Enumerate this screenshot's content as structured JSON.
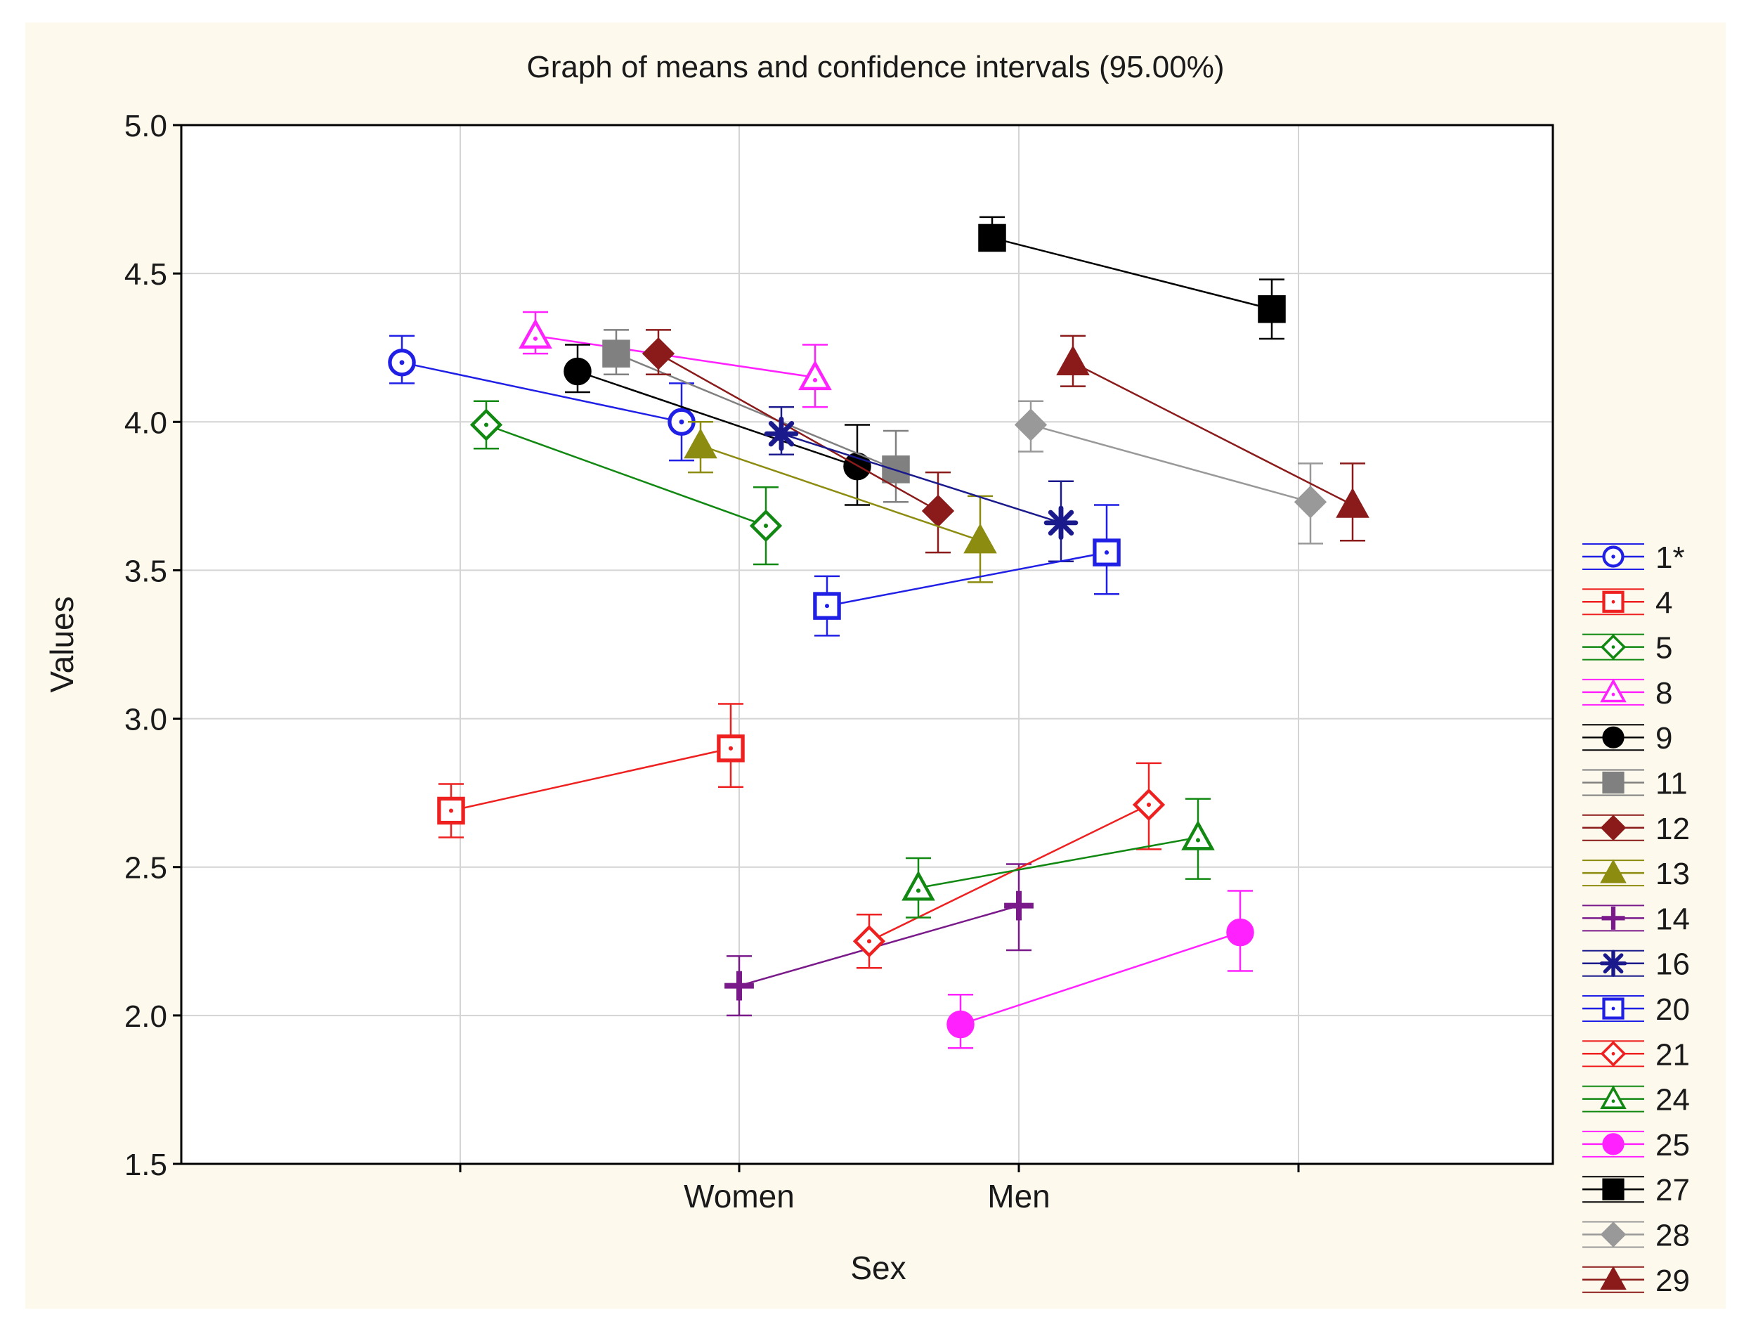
{
  "chart_data": {
    "type": "line",
    "title": "Graph of means and confidence intervals (95.00%)",
    "xlabel": "Sex",
    "ylabel": "Values",
    "categories": [
      "Women",
      "Men"
    ],
    "ylim": [
      1.5,
      5.0
    ],
    "yticks": [
      "1.5",
      "2.0",
      "2.5",
      "3.0",
      "3.5",
      "4.0",
      "4.5",
      "5.0"
    ],
    "grid": true,
    "legend_position": "right",
    "colors": {
      "background": "#fdf9ec",
      "plot_background": "#ffffff",
      "grid": "#d4d4d4",
      "axis": "#000000"
    },
    "series": [
      {
        "name": "1*",
        "color": "#1f1fe6",
        "marker": "circle-open",
        "women": {
          "mean": 4.2,
          "lo": 4.13,
          "hi": 4.29
        },
        "men": {
          "mean": 4.0,
          "lo": 3.87,
          "hi": 4.13
        }
      },
      {
        "name": "4",
        "color": "#ee2020",
        "marker": "square-open",
        "women": {
          "mean": 2.69,
          "lo": 2.6,
          "hi": 2.78
        },
        "men": {
          "mean": 2.9,
          "lo": 2.77,
          "hi": 3.05
        }
      },
      {
        "name": "5",
        "color": "#118811",
        "marker": "diamond-open",
        "women": {
          "mean": 3.99,
          "lo": 3.91,
          "hi": 4.07
        },
        "men": {
          "mean": 3.65,
          "lo": 3.52,
          "hi": 3.78
        }
      },
      {
        "name": "8",
        "color": "#ff22ff",
        "marker": "triangle-open",
        "women": {
          "mean": 4.29,
          "lo": 4.23,
          "hi": 4.37
        },
        "men": {
          "mean": 4.15,
          "lo": 4.05,
          "hi": 4.26
        }
      },
      {
        "name": "9",
        "color": "#000000",
        "marker": "circle-filled",
        "women": {
          "mean": 4.17,
          "lo": 4.1,
          "hi": 4.26
        },
        "men": {
          "mean": 3.85,
          "lo": 3.72,
          "hi": 3.99
        }
      },
      {
        "name": "11",
        "color": "#808080",
        "marker": "square-filled",
        "women": {
          "mean": 4.23,
          "lo": 4.16,
          "hi": 4.31
        },
        "men": {
          "mean": 3.84,
          "lo": 3.73,
          "hi": 3.97
        }
      },
      {
        "name": "12",
        "color": "#8b1a1a",
        "marker": "diamond-filled",
        "women": {
          "mean": 4.23,
          "lo": 4.16,
          "hi": 4.31
        },
        "men": {
          "mean": 3.7,
          "lo": 3.56,
          "hi": 3.83
        }
      },
      {
        "name": "13",
        "color": "#8c8c10",
        "marker": "triangle-filled",
        "women": {
          "mean": 3.92,
          "lo": 3.83,
          "hi": 4.0
        },
        "men": {
          "mean": 3.6,
          "lo": 3.46,
          "hi": 3.75
        }
      },
      {
        "name": "14",
        "color": "#7a1a8a",
        "marker": "plus",
        "women": {
          "mean": 2.1,
          "lo": 2.0,
          "hi": 2.2
        },
        "men": {
          "mean": 2.37,
          "lo": 2.22,
          "hi": 2.51
        }
      },
      {
        "name": "16",
        "color": "#1a1a8c",
        "marker": "asterisk",
        "women": {
          "mean": 3.96,
          "lo": 3.89,
          "hi": 4.05
        },
        "men": {
          "mean": 3.66,
          "lo": 3.53,
          "hi": 3.8
        }
      },
      {
        "name": "20",
        "color": "#1f1fe6",
        "marker": "square-open",
        "women": {
          "mean": 3.38,
          "lo": 3.28,
          "hi": 3.48
        },
        "men": {
          "mean": 3.56,
          "lo": 3.42,
          "hi": 3.72
        }
      },
      {
        "name": "21",
        "color": "#ee2020",
        "marker": "diamond-open",
        "women": {
          "mean": 2.25,
          "lo": 2.16,
          "hi": 2.34
        },
        "men": {
          "mean": 2.71,
          "lo": 2.56,
          "hi": 2.85
        }
      },
      {
        "name": "24",
        "color": "#118811",
        "marker": "triangle-open",
        "women": {
          "mean": 2.43,
          "lo": 2.33,
          "hi": 2.53
        },
        "men": {
          "mean": 2.6,
          "lo": 2.46,
          "hi": 2.73
        }
      },
      {
        "name": "25",
        "color": "#ff22ff",
        "marker": "circle-filled",
        "women": {
          "mean": 1.97,
          "lo": 1.89,
          "hi": 2.07
        },
        "men": {
          "mean": 2.28,
          "lo": 2.15,
          "hi": 2.42
        }
      },
      {
        "name": "27",
        "color": "#000000",
        "marker": "square-filled",
        "women": {
          "mean": 4.62,
          "lo": 4.58,
          "hi": 4.69
        },
        "men": {
          "mean": 4.38,
          "lo": 4.28,
          "hi": 4.48
        }
      },
      {
        "name": "28",
        "color": "#999999",
        "marker": "diamond-filled",
        "women": {
          "mean": 3.99,
          "lo": 3.9,
          "hi": 4.07
        },
        "men": {
          "mean": 3.73,
          "lo": 3.59,
          "hi": 3.86
        }
      },
      {
        "name": "29",
        "color": "#8b1a1a",
        "marker": "triangle-filled",
        "women": {
          "mean": 4.2,
          "lo": 4.12,
          "hi": 4.29
        },
        "men": {
          "mean": 3.72,
          "lo": 3.6,
          "hi": 3.86
        }
      }
    ]
  }
}
